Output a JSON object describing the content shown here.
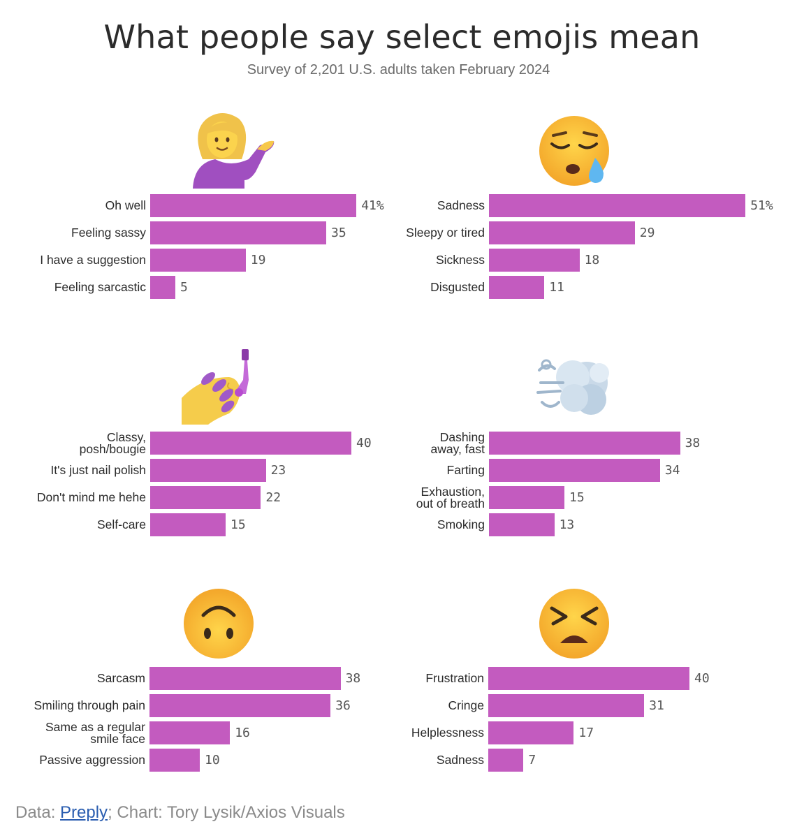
{
  "title": "What people say select emojis mean",
  "subtitle": "Survey of 2,201 U.S. adults taken February 2024",
  "colors": {
    "bar": "#c35bbf",
    "title": "#2b2b2b",
    "link": "#2a5db0"
  },
  "chart_data": [
    {
      "type": "bar",
      "orientation": "horizontal",
      "emoji": "person-tipping-hand-icon",
      "categories": [
        "Oh well",
        "Feeling sassy",
        "I have a suggestion",
        "Feeling sarcastic"
      ],
      "values": [
        41,
        35,
        19,
        5
      ],
      "value_labels": [
        "41%",
        "35",
        "19",
        "5"
      ]
    },
    {
      "type": "bar",
      "orientation": "horizontal",
      "emoji": "sleepy-face-icon",
      "categories": [
        "Sadness",
        "Sleepy or tired",
        "Sickness",
        "Disgusted"
      ],
      "values": [
        51,
        29,
        18,
        11
      ],
      "value_labels": [
        "51%",
        "29",
        "18",
        "11"
      ]
    },
    {
      "type": "bar",
      "orientation": "horizontal",
      "emoji": "nail-polish-icon",
      "categories": [
        "Classy,\nposh/bougie",
        "It's just nail polish",
        "Don't mind me hehe",
        "Self-care"
      ],
      "values": [
        40,
        23,
        22,
        15
      ],
      "value_labels": [
        "40",
        "23",
        "22",
        "15"
      ]
    },
    {
      "type": "bar",
      "orientation": "horizontal",
      "emoji": "dashing-away-icon",
      "categories": [
        "Dashing\naway, fast",
        "Farting",
        "Exhaustion,\nout of breath",
        "Smoking"
      ],
      "values": [
        38,
        34,
        15,
        13
      ],
      "value_labels": [
        "38",
        "34",
        "15",
        "13"
      ]
    },
    {
      "type": "bar",
      "orientation": "horizontal",
      "emoji": "upside-down-face-icon",
      "categories": [
        "Sarcasm",
        "Smiling through pain",
        "Same as a regular\nsmile face",
        "Passive aggression"
      ],
      "values": [
        38,
        36,
        16,
        10
      ],
      "value_labels": [
        "38",
        "36",
        "16",
        "10"
      ]
    },
    {
      "type": "bar",
      "orientation": "horizontal",
      "emoji": "persevering-face-icon",
      "categories": [
        "Frustration",
        "Cringe",
        "Helplessness",
        "Sadness"
      ],
      "values": [
        40,
        31,
        17,
        7
      ],
      "value_labels": [
        "40",
        "31",
        "17",
        "7"
      ]
    }
  ],
  "footer": {
    "prefix": "Data: ",
    "source": "Preply",
    "suffix": "; Chart: Tory Lysik/Axios Visuals"
  }
}
